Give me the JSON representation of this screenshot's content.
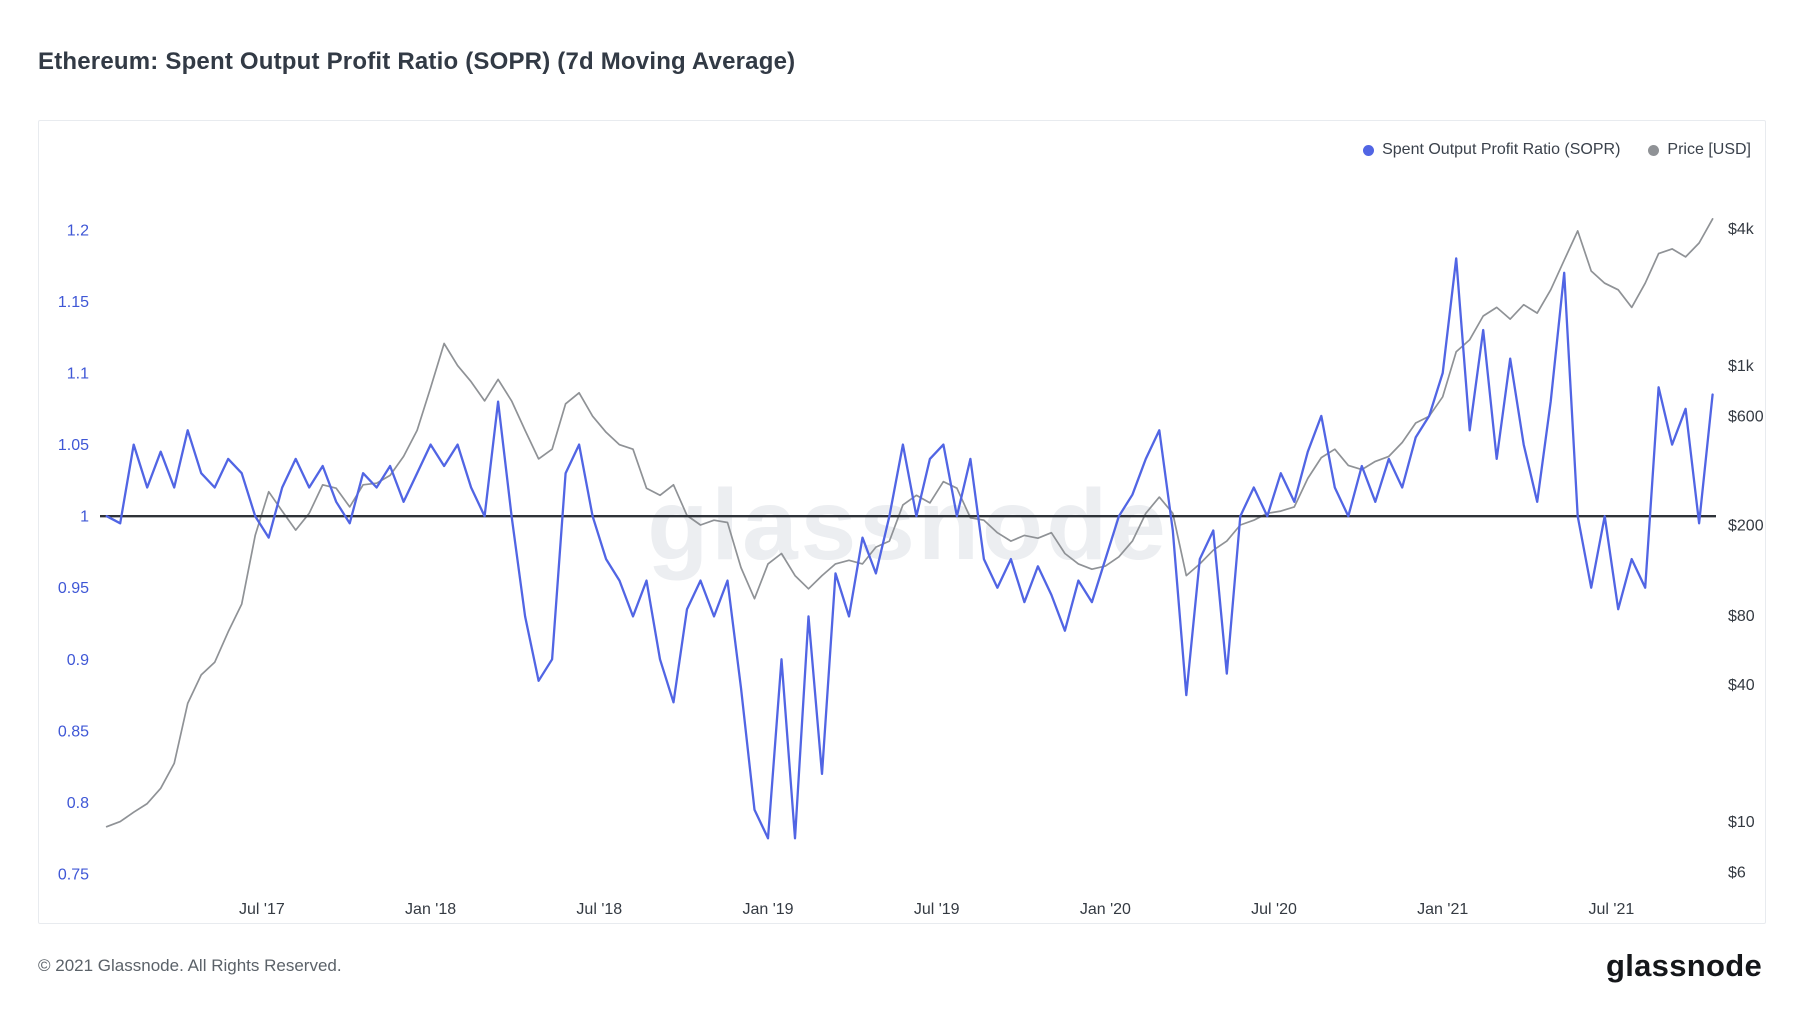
{
  "page": {
    "title": "Ethereum: Spent Output Profit Ratio (SOPR) (7d Moving Average)",
    "watermark": "glassnode",
    "footer_copyright": "© 2021 Glassnode. All Rights Reserved.",
    "brand_wordmark": "glassnode"
  },
  "colors": {
    "watermark_color": "#ECEEF1",
    "sopr_blue": "#5165E4",
    "price_gray": "#8F9296",
    "baseline_black": "#2E3238"
  },
  "chart_data": {
    "type": "line",
    "title": "Ethereum: Spent Output Profit Ratio (SOPR) (7d Moving Average)",
    "grid": false,
    "legend_position": "top-right",
    "x_start": 2017.04,
    "x_step": 0.04,
    "x_axis": {
      "xlim": [
        2017.02,
        2021.81
      ],
      "tick_values": [
        2017.5,
        2018,
        2018.5,
        2019,
        2019.5,
        2020,
        2020.5,
        2021,
        2021.5
      ],
      "tick_labels": [
        "Jul '17",
        "Jan '18",
        "Jul '18",
        "Jan '19",
        "Jul '19",
        "Jan '20",
        "Jul '20",
        "Jan '21",
        "Jul '21"
      ],
      "color": "#343A42"
    },
    "left_axis": {
      "title": "Spent Output Profit Ratio (SOPR)",
      "scale": "linear",
      "ylim": [
        0.734,
        1.276
      ],
      "tick_values": [
        0.75,
        0.8,
        0.85,
        0.9,
        0.95,
        1,
        1.05,
        1.1,
        1.15,
        1.2
      ],
      "tick_labels": [
        "0.75",
        "0.8",
        "0.85",
        "0.9",
        "0.95",
        "1",
        "1.05",
        "1.1",
        "1.15",
        "1.2"
      ],
      "color": "#3F57D6"
    },
    "right_axis": {
      "title": "Price [USD]",
      "scale": "log",
      "ylim": [
        4.67,
        11830
      ],
      "tick_values": [
        4000,
        1000,
        600,
        200,
        80,
        40,
        10,
        6
      ],
      "tick_labels": [
        "$4k",
        "$1k",
        "$600",
        "$200",
        "$80",
        "$40",
        "$10",
        "$6"
      ],
      "color": "#343A42"
    },
    "baseline": {
      "value": 1,
      "axis": "left"
    },
    "series": [
      {
        "name": "Spent Output Profit Ratio (SOPR)",
        "axis": "left",
        "color": "#5165E4",
        "values": [
          1.0,
          0.995,
          1.05,
          1.02,
          1.045,
          1.02,
          1.06,
          1.03,
          1.02,
          1.04,
          1.03,
          1.0,
          0.985,
          1.02,
          1.04,
          1.02,
          1.035,
          1.01,
          0.995,
          1.03,
          1.02,
          1.035,
          1.01,
          1.03,
          1.05,
          1.035,
          1.05,
          1.02,
          1.0,
          1.08,
          1.0,
          0.93,
          0.885,
          0.9,
          1.03,
          1.05,
          1.0,
          0.97,
          0.955,
          0.93,
          0.955,
          0.9,
          0.87,
          0.935,
          0.955,
          0.93,
          0.955,
          0.88,
          0.795,
          0.775,
          0.9,
          0.775,
          0.93,
          0.82,
          0.96,
          0.93,
          0.985,
          0.96,
          1.0,
          1.05,
          1.0,
          1.04,
          1.05,
          1.0,
          1.04,
          0.97,
          0.95,
          0.97,
          0.94,
          0.965,
          0.945,
          0.92,
          0.955,
          0.94,
          0.97,
          1.0,
          1.015,
          1.04,
          1.06,
          0.99,
          0.875,
          0.97,
          0.99,
          0.89,
          1.0,
          1.02,
          1.0,
          1.03,
          1.01,
          1.045,
          1.07,
          1.02,
          1.0,
          1.035,
          1.01,
          1.04,
          1.02,
          1.055,
          1.07,
          1.1,
          1.18,
          1.06,
          1.13,
          1.04,
          1.11,
          1.05,
          1.01,
          1.08,
          1.17,
          1.0,
          0.95,
          1.0,
          0.935,
          0.97,
          0.95,
          1.09,
          1.05,
          1.075,
          0.995,
          1.085
        ]
      },
      {
        "name": "Price [USD]",
        "axis": "right",
        "color": "#8F9296",
        "values": [
          9.5,
          10,
          11,
          12,
          14,
          18,
          33,
          44,
          50,
          68,
          90,
          180,
          280,
          230,
          190,
          225,
          300,
          290,
          240,
          300,
          305,
          330,
          400,
          520,
          800,
          1250,
          1000,
          850,
          700,
          870,
          700,
          520,
          390,
          430,
          680,
          760,
          600,
          510,
          450,
          430,
          290,
          270,
          300,
          220,
          200,
          210,
          205,
          130,
          95,
          135,
          150,
          120,
          105,
          120,
          135,
          140,
          135,
          160,
          170,
          245,
          270,
          250,
          310,
          290,
          215,
          210,
          185,
          170,
          180,
          175,
          185,
          150,
          135,
          128,
          132,
          145,
          170,
          225,
          265,
          225,
          120,
          135,
          155,
          170,
          200,
          210,
          225,
          230,
          240,
          320,
          395,
          430,
          365,
          350,
          380,
          400,
          460,
          560,
          600,
          730,
          1150,
          1300,
          1650,
          1800,
          1600,
          1850,
          1700,
          2150,
          2900,
          3900,
          2600,
          2300,
          2150,
          1800,
          2300,
          3100,
          3250,
          3000,
          3450,
          4400
        ]
      }
    ]
  }
}
